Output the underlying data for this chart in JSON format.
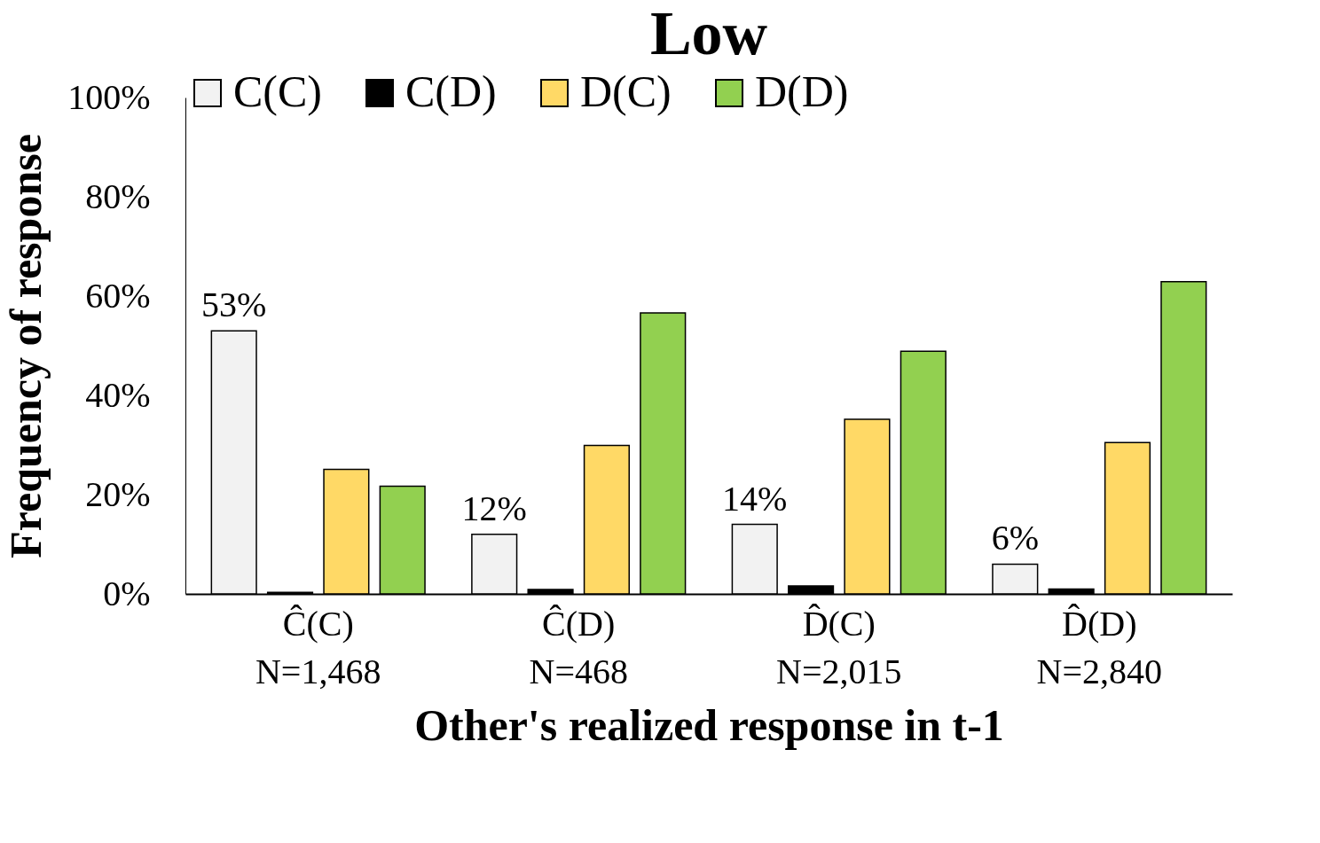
{
  "chart_data": {
    "type": "bar",
    "title": "Low",
    "xlabel": "Other's realized response in t-1",
    "ylabel": "Frequency of response",
    "categories": [
      "Ĉ(C)\nN=1,468",
      "Ĉ(D)\nN=468",
      "D̂(C)\nN=2,015",
      "D̂(D)\nN=2,840"
    ],
    "series": [
      {
        "name": "C(C)",
        "color": "#f2f2f2",
        "values": [
          53,
          12,
          14,
          6
        ],
        "value_labels": [
          "53%",
          "12%",
          "14%",
          "6%"
        ]
      },
      {
        "name": "C(D)",
        "color": "#000000",
        "values": [
          0.3,
          0.9,
          1.6,
          1.0
        ]
      },
      {
        "name": "D(C)",
        "color": "#ffd966",
        "values": [
          25.1,
          29.9,
          35.2,
          30.5
        ]
      },
      {
        "name": "D(D)",
        "color": "#92d050",
        "values": [
          21.7,
          56.6,
          48.9,
          62.9
        ]
      }
    ],
    "ylim": [
      0,
      100
    ],
    "yticks": [
      {
        "value": 0,
        "label": "0%"
      },
      {
        "value": 20,
        "label": "20%"
      },
      {
        "value": 40,
        "label": "40%"
      },
      {
        "value": 60,
        "label": "60%"
      },
      {
        "value": 80,
        "label": "80%"
      },
      {
        "value": 100,
        "label": "100%"
      }
    ],
    "legend": "top"
  }
}
